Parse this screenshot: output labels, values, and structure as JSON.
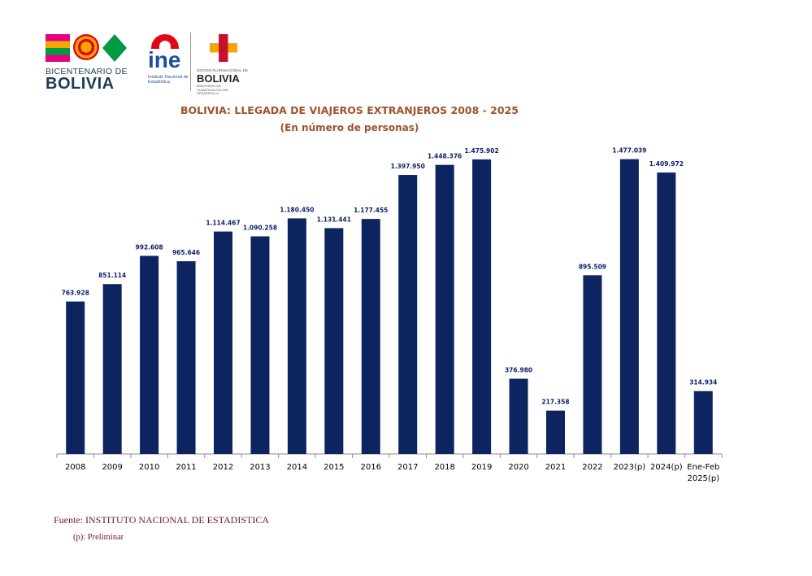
{
  "logos": {
    "bicentenario_line1": "BICENTENARIO DE",
    "bicentenario_line2": "BOLIVIA",
    "ine_word": "ine",
    "ine_sub": "Instituto Nacional de Estadística",
    "estado_top": "ESTADO PLURINACIONAL DE",
    "estado_bolivia": "BOLIVIA",
    "estado_ministerio": "MINISTERIO DE PLANIFICACIÓN DEL DESARROLLO"
  },
  "chart_data": {
    "type": "bar",
    "title": "BOLIVIA: LLEGADA DE VIAJEROS EXTRANJEROS  2008 - 2025",
    "subtitle": "(En número de personas)",
    "categories": [
      "2008",
      "2009",
      "2010",
      "2011",
      "2012",
      "2013",
      "2014",
      "2015",
      "2016",
      "2017",
      "2018",
      "2019",
      "2020",
      "2021",
      "2022",
      "2023(p)",
      "2024(p)",
      "Ene-Feb 2025(p)"
    ],
    "values": [
      763928,
      851114,
      992608,
      965646,
      1114467,
      1090258,
      1180450,
      1131441,
      1177455,
      1397950,
      1448376,
      1475902,
      376980,
      217358,
      895509,
      1477039,
      1409972,
      314934
    ],
    "data_labels": [
      "763.928",
      "851.114",
      "992.608",
      "965.646",
      "1.114.467",
      "1.090.258",
      "1.180.450",
      "1.131.441",
      "1.177.455",
      "1.397.950",
      "1.448.376",
      "1.475.902",
      "376.980",
      "217.358",
      "895.509",
      "1.477.039",
      "1.409.972",
      "314.934"
    ],
    "ylim": [
      0,
      1500000
    ],
    "bar_color": "#0d2461",
    "label_color": "#0d1f6b",
    "grid": false,
    "legend": "none"
  },
  "footer": {
    "source": "Fuente: INSTITUTO NACIONAL DE ESTADISTICA",
    "note": "(p): Preliminar"
  }
}
